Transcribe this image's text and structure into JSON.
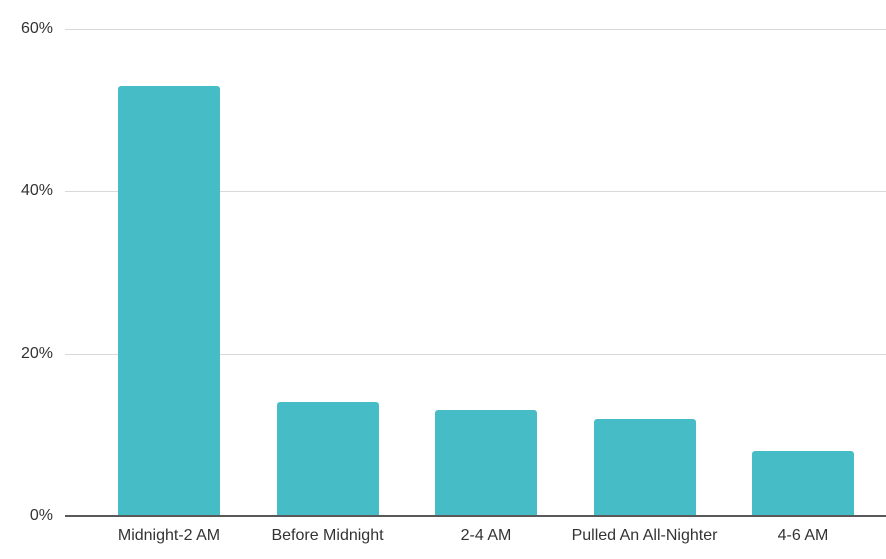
{
  "chart_data": {
    "type": "bar",
    "title": "",
    "xlabel": "",
    "ylabel": "",
    "categories": [
      "Midnight-2 AM",
      "Before Midnight",
      "2-4 AM",
      "Pulled An All-Nighter",
      "4-6 AM"
    ],
    "values": [
      53,
      14,
      13,
      12,
      8
    ],
    "unit": "%",
    "ylim": [
      0,
      60
    ],
    "yticks": [
      {
        "value": 0,
        "label": "0%"
      },
      {
        "value": 20,
        "label": "20%"
      },
      {
        "value": 40,
        "label": "40%"
      },
      {
        "value": 60,
        "label": "60%"
      }
    ],
    "grid": true,
    "legend_position": "none",
    "colors": {
      "bar": "#46bdc6",
      "gridline": "#d9d9d9",
      "axis_line": "#595959",
      "label_text": "#333333",
      "background": "#ffffff"
    }
  }
}
